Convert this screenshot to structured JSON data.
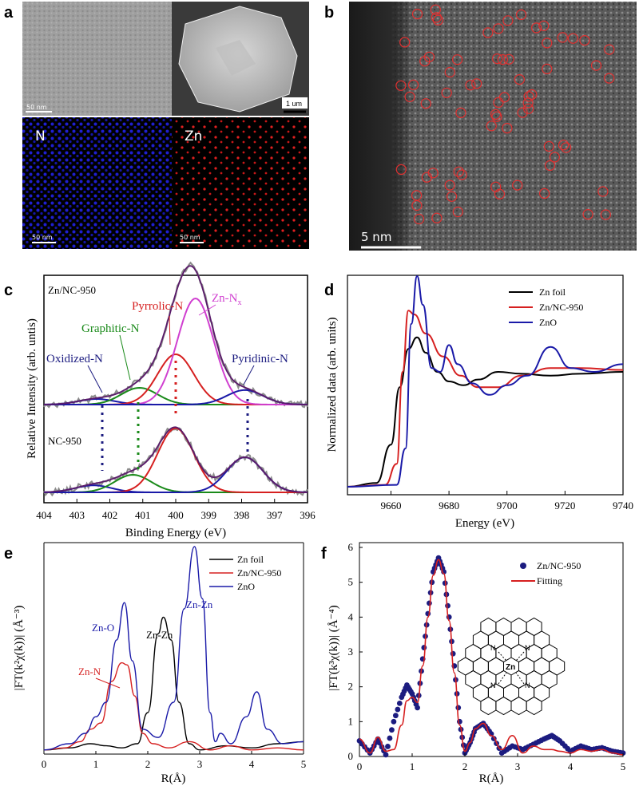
{
  "panels": {
    "a": {
      "label": "a",
      "tem_scale": "50 nm",
      "sem_scale": "1 um",
      "map_n": {
        "label": "N",
        "scale": "50 nm"
      },
      "map_zn": {
        "label": "Zn",
        "scale": "50 nm"
      }
    },
    "b": {
      "label": "b",
      "scale": "5 nm"
    },
    "c": {
      "label": "c"
    },
    "d": {
      "label": "d"
    },
    "e": {
      "label": "e"
    },
    "f": {
      "label": "f"
    }
  },
  "colors": {
    "black": "#000000",
    "red": "#d62020",
    "blue": "#1a1aa8",
    "green": "#1a8a1a",
    "magenta": "#d040d0",
    "purple": "#5a1a6a",
    "gray": "#8c8c8c",
    "navy": "#1c1c80"
  },
  "chart_data": [
    {
      "id": "c",
      "type": "line",
      "title": "",
      "xlabel": "Binding Energy (eV)",
      "ylabel": "Relative Intensity (arb. untis)",
      "xlim": [
        404,
        396
      ],
      "x_ticks": [
        "404",
        "403",
        "402",
        "401",
        "400",
        "399",
        "398",
        "397",
        "396"
      ],
      "samples": [
        "Zn/NC-950",
        "NC-950"
      ],
      "annotations": [
        "Pyrrolic-N",
        "Zn-N",
        "Graphitic-N",
        "Oxidized-N",
        "Pyridinic-N"
      ],
      "annotation_sub": "x",
      "peaks": [
        {
          "sample": "Zn/NC-950",
          "component": "Oxidized-N",
          "center": 402.4,
          "height": 0.05
        },
        {
          "sample": "Zn/NC-950",
          "component": "Graphitic-N",
          "center": 401.1,
          "height": 0.15
        },
        {
          "sample": "Zn/NC-950",
          "component": "Pyrrolic-N",
          "center": 400.0,
          "height": 0.45
        },
        {
          "sample": "Zn/NC-950",
          "component": "Zn-Nx",
          "center": 399.4,
          "height": 0.95
        },
        {
          "sample": "Zn/NC-950",
          "component": "Pyridinic-N",
          "center": 397.9,
          "height": 0.13
        },
        {
          "sample": "NC-950",
          "component": "Oxidized-N",
          "center": 402.5,
          "height": 0.08
        },
        {
          "sample": "NC-950",
          "component": "Graphitic-N",
          "center": 401.3,
          "height": 0.2
        },
        {
          "sample": "NC-950",
          "component": "Pyrrolic-N",
          "center": 400.0,
          "height": 0.73
        },
        {
          "sample": "NC-950",
          "component": "Pyridinic-N",
          "center": 397.9,
          "height": 0.4
        }
      ]
    },
    {
      "id": "d",
      "type": "line",
      "title": "",
      "xlabel": "Energy (eV)",
      "ylabel": "Normalized data (arb. units)",
      "xlim": [
        9645,
        9740
      ],
      "x_ticks": [
        "9660",
        "9680",
        "9700",
        "9720",
        "9740"
      ],
      "legend": "top-right",
      "series": [
        {
          "name": "Zn foil",
          "x": [
            9645,
            9655,
            9660,
            9663,
            9666,
            9669,
            9672,
            9676,
            9680,
            9685,
            9690,
            9697,
            9705,
            9715,
            9725,
            9740
          ],
          "values": [
            0.0,
            0.02,
            0.22,
            0.52,
            0.72,
            0.78,
            0.7,
            0.6,
            0.55,
            0.53,
            0.56,
            0.6,
            0.59,
            0.58,
            0.59,
            0.6
          ]
        },
        {
          "name": "Zn/NC-950",
          "x": [
            9645,
            9658,
            9662,
            9664,
            9666,
            9668,
            9672,
            9678,
            9684,
            9690,
            9697,
            9705,
            9715,
            9725,
            9740
          ],
          "values": [
            0.0,
            0.01,
            0.12,
            0.6,
            0.92,
            0.9,
            0.8,
            0.68,
            0.58,
            0.52,
            0.52,
            0.58,
            0.62,
            0.62,
            0.61
          ]
        },
        {
          "name": "ZnO",
          "x": [
            9645,
            9662,
            9665,
            9667,
            9669,
            9671,
            9674,
            9677,
            9680,
            9683,
            9688,
            9694,
            9700,
            9707,
            9715,
            9722,
            9730,
            9740
          ],
          "values": [
            0.0,
            0.01,
            0.2,
            0.85,
            1.1,
            0.95,
            0.62,
            0.6,
            0.74,
            0.64,
            0.54,
            0.48,
            0.53,
            0.58,
            0.73,
            0.62,
            0.6,
            0.64
          ]
        }
      ]
    },
    {
      "id": "e",
      "type": "line",
      "title": "",
      "xlabel": "R(Å)",
      "ylabel": "|FT(k²χ(k))| (Å⁻³)",
      "xlim": [
        0,
        5
      ],
      "x_ticks": [
        "0",
        "1",
        "2",
        "3",
        "4",
        "5"
      ],
      "legend": "top-right",
      "annotations": [
        "Zn-Zn",
        "Zn-O",
        "Zn-Zn",
        "Zn-N"
      ],
      "series": [
        {
          "name": "Zn foil",
          "x": [
            0,
            0.5,
            0.9,
            1.2,
            1.5,
            1.8,
            2.0,
            2.2,
            2.3,
            2.45,
            2.6,
            2.8,
            3.0,
            3.5,
            4.0,
            4.5,
            5.0
          ],
          "values": [
            0.02,
            0.03,
            0.05,
            0.04,
            0.03,
            0.05,
            0.2,
            0.58,
            0.66,
            0.55,
            0.25,
            0.05,
            0.02,
            0.04,
            0.03,
            0.05,
            0.06
          ]
        },
        {
          "name": "Zn/NC-950",
          "x": [
            0,
            0.4,
            0.7,
            0.9,
            1.1,
            1.3,
            1.5,
            1.6,
            1.75,
            1.9,
            2.1,
            2.4,
            2.8,
            3.2,
            3.6,
            4.0,
            4.5,
            5.0
          ],
          "values": [
            0.02,
            0.03,
            0.06,
            0.12,
            0.15,
            0.35,
            0.44,
            0.43,
            0.28,
            0.1,
            0.05,
            0.03,
            0.06,
            0.02,
            0.04,
            0.02,
            0.03,
            0.02
          ]
        },
        {
          "name": "ZnO",
          "x": [
            0,
            0.5,
            0.8,
            1.0,
            1.2,
            1.4,
            1.55,
            1.7,
            1.9,
            2.2,
            2.5,
            2.7,
            2.9,
            3.05,
            3.2,
            3.3,
            3.4,
            3.6,
            3.9,
            4.1,
            4.3,
            4.6,
            5.0
          ],
          "values": [
            0.02,
            0.05,
            0.1,
            0.18,
            0.25,
            0.55,
            0.73,
            0.45,
            0.12,
            0.08,
            0.25,
            0.7,
            1.0,
            0.75,
            0.2,
            0.06,
            0.1,
            0.05,
            0.18,
            0.3,
            0.12,
            0.05,
            0.06
          ]
        }
      ]
    },
    {
      "id": "f",
      "type": "scatter",
      "title": "",
      "xlabel": "R(Å)",
      "ylabel": "|FT(k³χ(k))| (Å⁻⁴)",
      "xlim": [
        0,
        5
      ],
      "ylim": [
        0,
        6
      ],
      "x_ticks": [
        "0",
        "1",
        "2",
        "3",
        "4",
        "5"
      ],
      "y_ticks": [
        "0",
        "1",
        "2",
        "3",
        "4",
        "5",
        "6"
      ],
      "legend": "top-right",
      "series": [
        {
          "name": "Zn/NC-950",
          "x": [
            0.0,
            0.2,
            0.35,
            0.5,
            0.65,
            0.8,
            0.9,
            1.0,
            1.1,
            1.2,
            1.3,
            1.4,
            1.5,
            1.6,
            1.7,
            1.8,
            1.9,
            2.0,
            2.1,
            2.2,
            2.35,
            2.5,
            2.7,
            2.9,
            3.1,
            3.3,
            3.5,
            3.65,
            3.8,
            4.0,
            4.2,
            4.4,
            4.6,
            4.8,
            5.0
          ],
          "values": [
            0.45,
            0.1,
            0.5,
            0.05,
            1.0,
            1.7,
            2.05,
            1.8,
            1.4,
            2.8,
            4.1,
            5.3,
            5.7,
            5.3,
            4.0,
            2.6,
            1.0,
            0.1,
            0.4,
            0.8,
            0.95,
            0.65,
            0.1,
            0.3,
            0.2,
            0.35,
            0.5,
            0.6,
            0.45,
            0.15,
            0.3,
            0.2,
            0.25,
            0.15,
            0.1
          ]
        },
        {
          "name": "Fitting",
          "x": [
            0.0,
            0.2,
            0.35,
            0.5,
            0.65,
            0.8,
            0.9,
            1.0,
            1.1,
            1.2,
            1.3,
            1.4,
            1.5,
            1.6,
            1.7,
            1.8,
            1.9,
            2.0,
            2.1,
            2.2,
            2.35,
            2.5,
            2.7,
            2.9,
            3.1,
            3.3,
            3.5,
            3.65,
            3.8,
            4.0,
            4.2,
            4.4,
            4.6,
            4.8,
            5.0
          ],
          "values": [
            0.5,
            0.1,
            0.55,
            0.15,
            0.2,
            0.9,
            1.6,
            1.7,
            1.55,
            2.6,
            4.0,
            5.2,
            5.65,
            5.25,
            3.9,
            2.4,
            0.9,
            0.15,
            0.4,
            0.8,
            0.95,
            0.6,
            0.2,
            0.6,
            0.1,
            0.3,
            0.2,
            0.2,
            0.15,
            0.1,
            0.2,
            0.15,
            0.2,
            0.1,
            0.05
          ]
        }
      ]
    }
  ]
}
